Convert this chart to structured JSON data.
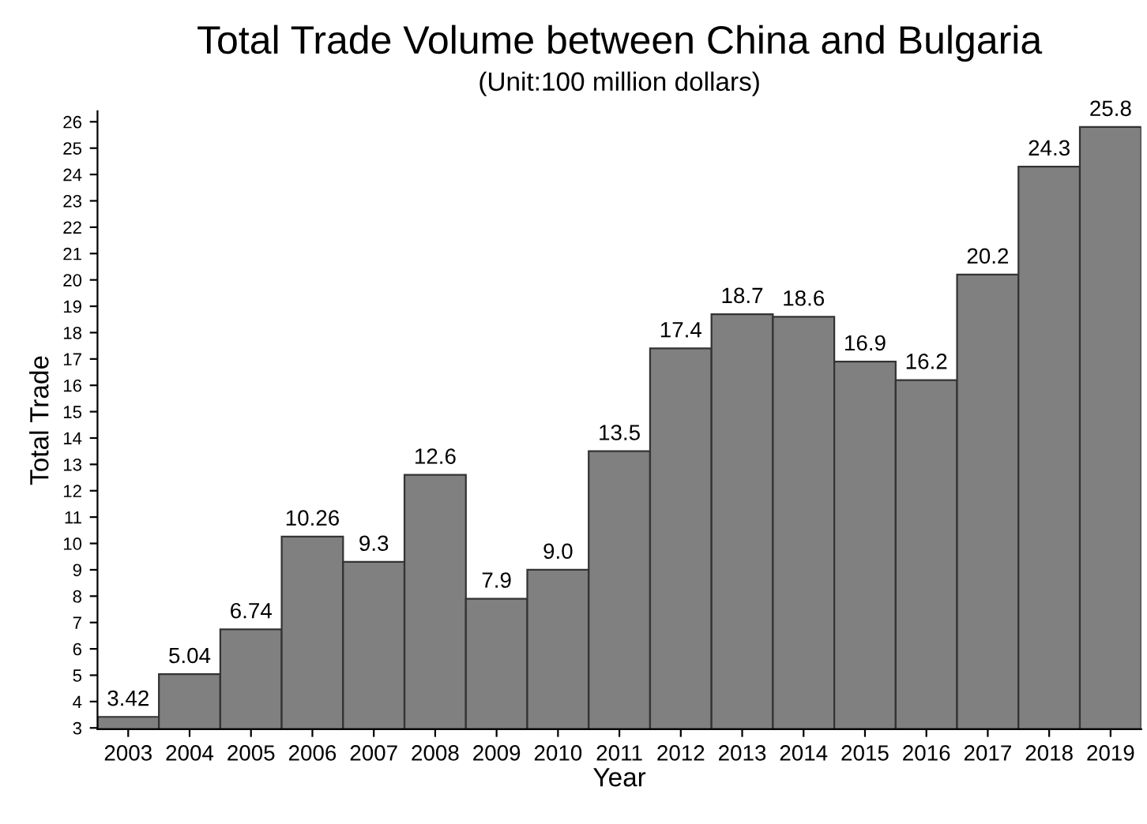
{
  "chart_data": {
    "type": "bar",
    "title": "Total Trade Volume between China and Bulgaria",
    "subtitle": "(Unit:100 million dollars)",
    "xlabel": "Year",
    "ylabel": "Total Trade",
    "categories": [
      "2003",
      "2004",
      "2005",
      "2006",
      "2007",
      "2008",
      "2009",
      "2010",
      "2011",
      "2012",
      "2013",
      "2014",
      "2015",
      "2016",
      "2017",
      "2018",
      "2019"
    ],
    "values": [
      3.42,
      5.04,
      6.74,
      10.26,
      9.3,
      12.6,
      7.9,
      9.0,
      13.5,
      17.4,
      18.7,
      18.6,
      16.9,
      16.2,
      20.2,
      24.3,
      25.8
    ],
    "value_labels": [
      "3.42",
      "5.04",
      "6.74",
      "10.26",
      "9.3",
      "12.6",
      "7.9",
      "9.0",
      "13.5",
      "17.4",
      "18.7",
      "18.6",
      "16.9",
      "16.2",
      "20.2",
      "24.3",
      "25.8"
    ],
    "color": "#808080",
    "ylim": [
      2.95,
      26.4
    ],
    "yticks": [
      3,
      4,
      5,
      6,
      7,
      8,
      9,
      10,
      11,
      12,
      13,
      14,
      15,
      16,
      17,
      18,
      19,
      20,
      21,
      22,
      23,
      24,
      25,
      26
    ],
    "grid": false,
    "legend": false
  }
}
